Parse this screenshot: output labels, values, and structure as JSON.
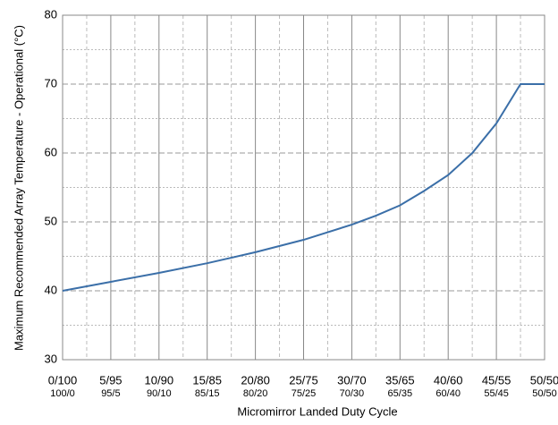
{
  "chart_data": {
    "type": "line",
    "xlabel": "Micromirror Landed Duty Cycle",
    "ylabel": "Maximum Recommended Array Temperature - Operational (°C)",
    "x": [
      0,
      5,
      10,
      15,
      20,
      25,
      30,
      32.5,
      35,
      37.5,
      40,
      42.5,
      45,
      47.5,
      50
    ],
    "series": [
      {
        "color": "#3b6fa8",
        "values": [
          40,
          41.3,
          42.6,
          44.0,
          45.6,
          47.4,
          49.6,
          50.9,
          52.4,
          54.5,
          56.8,
          60,
          64.3,
          70,
          70
        ]
      }
    ],
    "xlim": [
      0,
      50
    ],
    "xticks": [
      {
        "value": 0,
        "label": "0/100"
      },
      {
        "value": 5,
        "label": "5/95"
      },
      {
        "value": 10,
        "label": "10/90"
      },
      {
        "value": 15,
        "label": "15/85"
      },
      {
        "value": 20,
        "label": "20/80"
      },
      {
        "value": 25,
        "label": "25/75"
      },
      {
        "value": 30,
        "label": "30/70"
      },
      {
        "value": 35,
        "label": "35/65"
      },
      {
        "value": 40,
        "label": "40/60"
      },
      {
        "value": 45,
        "label": "45/55"
      },
      {
        "value": 50,
        "label": "50/50"
      }
    ],
    "xtick_sublabels": [
      "100/0",
      "95/5",
      "90/10",
      "85/15",
      "80/20",
      "75/25",
      "70/30",
      "65/35",
      "60/40",
      "55/45",
      "50/50"
    ],
    "ylim": [
      30,
      80
    ],
    "yticks": [
      30,
      40,
      50,
      60,
      70,
      80
    ],
    "grid": true
  }
}
